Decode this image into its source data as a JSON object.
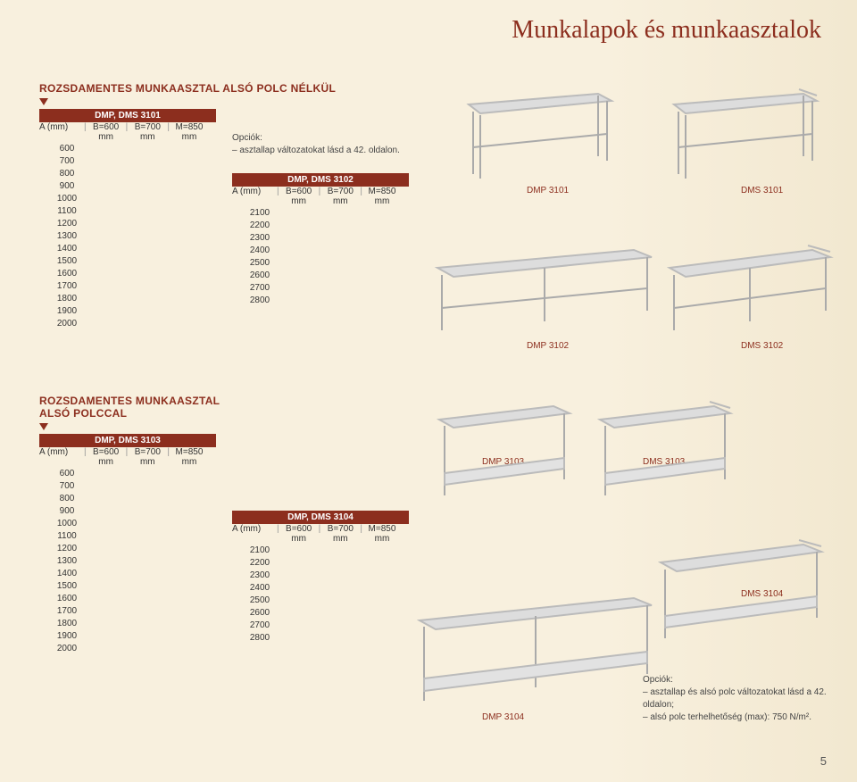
{
  "page_title": "Munkalapok és munkaasztalok",
  "page_number": "5",
  "accent_color": "#8c2e1e",
  "section1": {
    "header": "ROZSDAMENTES MUNKAASZTAL ALSÓ POLC NÉLKÜL",
    "tableA": {
      "title": "DMP, DMS 3101",
      "col_head": [
        "A (mm)",
        "B=600 mm",
        "B=700 mm",
        "M=850 mm"
      ],
      "rows": [
        "600",
        "700",
        "800",
        "900",
        "1000",
        "1100",
        "1200",
        "1300",
        "1400",
        "1500",
        "1600",
        "1700",
        "1800",
        "1900",
        "2000"
      ]
    },
    "tableB": {
      "title": "DMP, DMS 3102",
      "col_head": [
        "A (mm)",
        "B=600 mm",
        "B=700 mm",
        "M=850 mm"
      ],
      "rows": [
        "2100",
        "2200",
        "2300",
        "2400",
        "2500",
        "2600",
        "2700",
        "2800"
      ]
    },
    "options": {
      "label": "Opciók:",
      "line1": "– asztallap változatokat lásd a 42. oldalon."
    },
    "labels": {
      "dmp3101": "DMP 3101",
      "dms3101": "DMS 3101",
      "dmp3102": "DMP 3102",
      "dms3102": "DMS 3102"
    }
  },
  "section2": {
    "header": "ROZSDAMENTES MUNKAASZTAL ALSÓ POLCCAL",
    "tableA": {
      "title": "DMP, DMS 3103",
      "col_head": [
        "A (mm)",
        "B=600 mm",
        "B=700 mm",
        "M=850 mm"
      ],
      "rows": [
        "600",
        "700",
        "800",
        "900",
        "1000",
        "1100",
        "1200",
        "1300",
        "1400",
        "1500",
        "1600",
        "1700",
        "1800",
        "1900",
        "2000"
      ]
    },
    "tableB": {
      "title": "DMP, DMS 3104",
      "col_head": [
        "A (mm)",
        "B=600 mm",
        "B=700 mm",
        "M=850 mm"
      ],
      "rows": [
        "2100",
        "2200",
        "2300",
        "2400",
        "2500",
        "2600",
        "2700",
        "2800"
      ]
    },
    "options": {
      "label": "Opciók:",
      "line1": "– asztallap és alsó polc változatokat lásd a 42. oldalon;",
      "line2": "– alsó polc terhelhetőség (max): 750 N/m²."
    },
    "labels": {
      "dmp3103": "DMP 3103",
      "dms3103": "DMS 3103",
      "dmp3104": "DMP 3104",
      "dms3104": "DMS 3104"
    }
  }
}
